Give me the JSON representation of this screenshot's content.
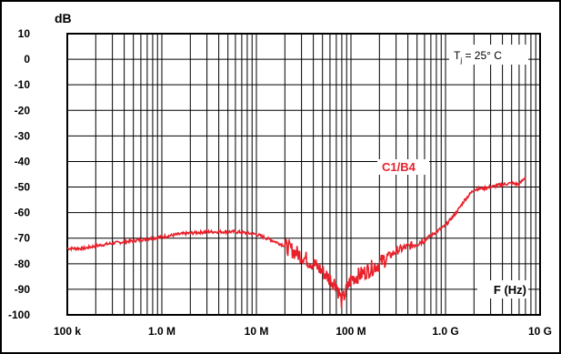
{
  "chart_data": {
    "type": "line",
    "title": "",
    "ylabel": "dB",
    "xlabel": "F (Hz)",
    "x_scale": "log",
    "xlim": [
      100000,
      10000000000
    ],
    "ylim": [
      -100,
      10
    ],
    "x_tick_values": [
      100000,
      1000000,
      10000000,
      100000000,
      1000000000,
      10000000000
    ],
    "x_tick_labels": [
      "100 k",
      "1.0 M",
      "10 M",
      "100 M",
      "1.0 G",
      "10 G"
    ],
    "y_tick_values": [
      10,
      0,
      -10,
      -20,
      -30,
      -40,
      -50,
      -60,
      -70,
      -80,
      -90,
      -100
    ],
    "y_tick_labels": [
      "10",
      "0",
      "-10",
      "-20",
      "-30",
      "-40",
      "-50",
      "-60",
      "-70",
      "-80",
      "-90",
      "-100"
    ],
    "grid": true,
    "annotation": {
      "prefix": "T",
      "subscript": "j",
      "suffix": " = 25° C"
    },
    "series": [
      {
        "name": "C1/B4",
        "color": "#e8202a",
        "x": [
          100000,
          150000,
          200000,
          300000,
          500000,
          800000,
          1000000,
          1500000,
          2000000,
          3000000,
          4000000,
          6000000,
          8000000,
          10000000,
          15000000,
          20000000,
          30000000,
          40000000,
          50000000,
          60000000,
          70000000,
          80000000,
          90000000,
          100000000,
          130000000,
          160000000,
          200000000,
          300000000,
          500000000,
          700000000,
          1000000000,
          1300000000,
          1600000000,
          2000000000,
          3000000000,
          4000000000,
          5000000000,
          6000000000,
          7000000000
        ],
        "y": [
          -74,
          -74,
          -73,
          -72,
          -71,
          -70,
          -69.5,
          -68.5,
          -68,
          -67.5,
          -67.5,
          -67.5,
          -68,
          -68.5,
          -71,
          -73,
          -77,
          -80,
          -83,
          -86,
          -88,
          -95,
          -90,
          -86,
          -84,
          -82,
          -80,
          -75,
          -72,
          -69,
          -65,
          -60,
          -55,
          -51,
          -50,
          -49,
          -48.5,
          -49,
          -46
        ]
      }
    ]
  }
}
